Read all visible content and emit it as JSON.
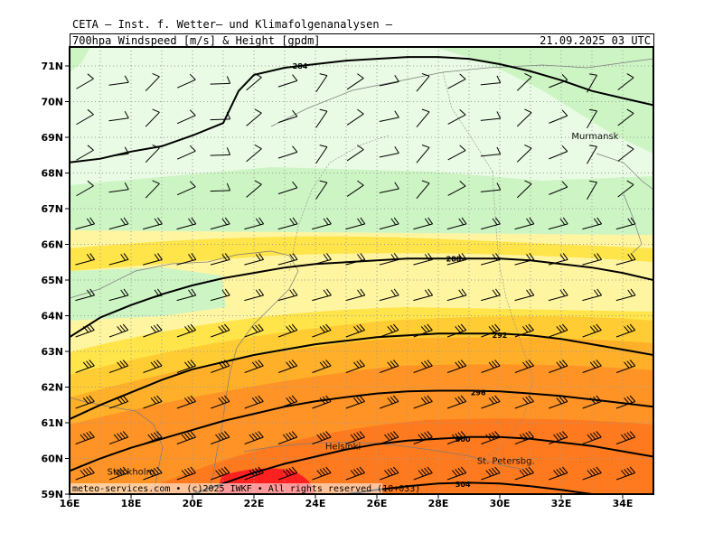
{
  "header": {
    "title": "CETA — Inst. f. Wetter— und Klimafolgenanalysen —",
    "subtitle": "700hpa_Windspeed_[m/s]_&_Height_[gpdm]",
    "valid_time": "21.09.2025 03 UTC"
  },
  "footer": {
    "copyright": "meteo-services.com • (c)2025 IWKF • All rights reserved (18+033)"
  },
  "map": {
    "lon_range": [
      16,
      35
    ],
    "lat_range": [
      59,
      71.5
    ],
    "lon_labels": [
      "16E",
      "18E",
      "20E",
      "22E",
      "24E",
      "26E",
      "28E",
      "30E",
      "32E",
      "34E"
    ],
    "lat_labels": [
      "59N",
      "60N",
      "61N",
      "62N",
      "63N",
      "64N",
      "65N",
      "66N",
      "67N",
      "68N",
      "69N",
      "70N",
      "71N"
    ],
    "colors": {
      "very_light_green": "#e9fbe4",
      "light_green": "#cdf5c4",
      "light_yellow": "#fff5a0",
      "yellow": "#ffe44a",
      "gold": "#ffcc33",
      "orange_light": "#ffb028",
      "orange": "#ff9326",
      "orange_dark": "#ff7a1e",
      "red": "#ff2020",
      "contour": "#000000",
      "grid": "#999999"
    },
    "contours": [
      {
        "label": "284",
        "points": [
          [
            16,
            68.3
          ],
          [
            17,
            68.4
          ],
          [
            18,
            68.6
          ],
          [
            19,
            68.75
          ],
          [
            20,
            69.05
          ],
          [
            21,
            69.4
          ],
          [
            21.5,
            70.3
          ],
          [
            22,
            70.75
          ],
          [
            23,
            70.95
          ],
          [
            24,
            71.05
          ],
          [
            25,
            71.15
          ],
          [
            26,
            71.2
          ],
          [
            27,
            71.25
          ],
          [
            28,
            71.25
          ],
          [
            29,
            71.2
          ],
          [
            30,
            71.05
          ],
          [
            31,
            70.85
          ],
          [
            32,
            70.6
          ],
          [
            33,
            70.3
          ],
          [
            34,
            70.1
          ],
          [
            35,
            69.9
          ]
        ],
        "label_at": [
          23.5,
          71.0
        ]
      },
      {
        "label": "288",
        "points": [
          [
            16,
            63.4
          ],
          [
            17,
            63.95
          ],
          [
            18,
            64.3
          ],
          [
            19,
            64.6
          ],
          [
            20,
            64.85
          ],
          [
            21,
            65.05
          ],
          [
            22,
            65.2
          ],
          [
            23,
            65.35
          ],
          [
            24,
            65.45
          ],
          [
            25,
            65.5
          ],
          [
            26,
            65.55
          ],
          [
            27,
            65.6
          ],
          [
            28,
            65.6
          ],
          [
            29,
            65.6
          ],
          [
            30,
            65.6
          ],
          [
            31,
            65.55
          ],
          [
            32,
            65.45
          ],
          [
            33,
            65.35
          ],
          [
            34,
            65.2
          ],
          [
            35,
            65.0
          ]
        ],
        "label_at": [
          28.5,
          65.6
        ]
      },
      {
        "label": "292",
        "points": [
          [
            16,
            61.1
          ],
          [
            17,
            61.5
          ],
          [
            18,
            61.85
          ],
          [
            19,
            62.2
          ],
          [
            20,
            62.5
          ],
          [
            21,
            62.7
          ],
          [
            22,
            62.9
          ],
          [
            23,
            63.05
          ],
          [
            24,
            63.2
          ],
          [
            25,
            63.3
          ],
          [
            26,
            63.4
          ],
          [
            27,
            63.45
          ],
          [
            28,
            63.5
          ],
          [
            29,
            63.5
          ],
          [
            30,
            63.5
          ],
          [
            31,
            63.45
          ],
          [
            32,
            63.35
          ],
          [
            33,
            63.2
          ],
          [
            34,
            63.05
          ],
          [
            35,
            62.9
          ]
        ],
        "label_at": [
          30.0,
          63.45
        ]
      },
      {
        "label": "296",
        "points": [
          [
            16,
            59.65
          ],
          [
            17,
            60.0
          ],
          [
            18,
            60.3
          ],
          [
            19,
            60.55
          ],
          [
            20,
            60.8
          ],
          [
            21,
            61.05
          ],
          [
            22,
            61.25
          ],
          [
            23,
            61.45
          ],
          [
            24,
            61.6
          ],
          [
            25,
            61.72
          ],
          [
            26,
            61.82
          ],
          [
            27,
            61.88
          ],
          [
            28,
            61.9
          ],
          [
            29,
            61.9
          ],
          [
            30,
            61.88
          ],
          [
            31,
            61.82
          ],
          [
            32,
            61.75
          ],
          [
            33,
            61.65
          ],
          [
            34,
            61.55
          ],
          [
            35,
            61.45
          ]
        ],
        "label_at": [
          29.3,
          61.85
        ]
      },
      {
        "label": "300",
        "points": [
          [
            20,
            59.0
          ],
          [
            21,
            59.3
          ],
          [
            22,
            59.6
          ],
          [
            23,
            59.85
          ],
          [
            24,
            60.05
          ],
          [
            25,
            60.25
          ],
          [
            26,
            60.4
          ],
          [
            27,
            60.5
          ],
          [
            28,
            60.55
          ],
          [
            29,
            60.6
          ],
          [
            30,
            60.6
          ],
          [
            31,
            60.55
          ],
          [
            32,
            60.45
          ],
          [
            33,
            60.35
          ],
          [
            34,
            60.2
          ],
          [
            35,
            60.05
          ]
        ],
        "label_at": [
          28.8,
          60.55
        ]
      },
      {
        "label": "304",
        "points": [
          [
            25,
            59.0
          ],
          [
            26,
            59.12
          ],
          [
            27,
            59.22
          ],
          [
            28,
            59.3
          ],
          [
            29,
            59.32
          ],
          [
            30,
            59.3
          ],
          [
            31,
            59.22
          ],
          [
            32,
            59.12
          ],
          [
            33,
            59.0
          ]
        ],
        "label_at": [
          28.8,
          59.28
        ]
      }
    ],
    "cities": [
      {
        "name": "Murmansk",
        "lon": 33.1,
        "lat": 68.95
      },
      {
        "name": "Helsinki",
        "lon": 24.9,
        "lat": 60.25
      },
      {
        "name": "Stockholm",
        "lon": 18.0,
        "lat": 59.55
      },
      {
        "name": "St. Petersbg.",
        "lon": 30.2,
        "lat": 59.85
      }
    ]
  }
}
